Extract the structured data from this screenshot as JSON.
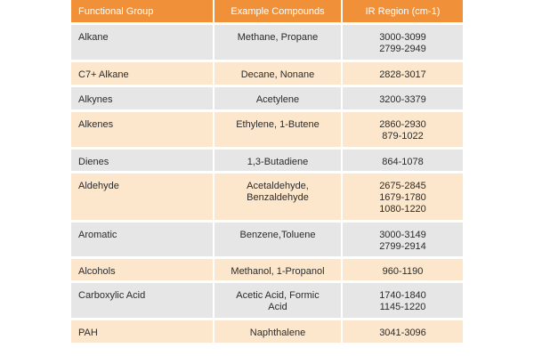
{
  "table": {
    "headers": [
      "Functional Group",
      "Example Compounds",
      "IR Region (cm-1)"
    ],
    "rows": [
      {
        "group": "Alkane",
        "compounds": [
          "Methane, Propane"
        ],
        "regions": [
          "3000-3099",
          "2799-2949"
        ]
      },
      {
        "group": "C7+ Alkane",
        "compounds": [
          "Decane, Nonane"
        ],
        "regions": [
          "2828-3017"
        ]
      },
      {
        "group": "Alkynes",
        "compounds": [
          "Acetylene"
        ],
        "regions": [
          "3200-3379"
        ]
      },
      {
        "group": "Alkenes",
        "compounds": [
          "Ethylene, 1-Butene"
        ],
        "regions": [
          "2860-2930",
          "879-1022"
        ]
      },
      {
        "group": "Dienes",
        "compounds": [
          "1,3-Butadiene"
        ],
        "regions": [
          "864-1078"
        ]
      },
      {
        "group": "Aldehyde",
        "compounds": [
          "Acetaldehyde,",
          "Benzaldehyde"
        ],
        "regions": [
          "2675-2845",
          "1679-1780",
          "1080-1220"
        ]
      },
      {
        "group": "Aromatic",
        "compounds": [
          "Benzene,Toluene"
        ],
        "regions": [
          "3000-3149",
          "2799-2914"
        ]
      },
      {
        "group": "Alcohols",
        "compounds": [
          "Methanol, 1-Propanol"
        ],
        "regions": [
          "960-1190"
        ]
      },
      {
        "group": "Carboxylic Acid",
        "compounds": [
          "Acetic Acid, Formic",
          "Acid"
        ],
        "regions": [
          "1740-1840",
          "1145-1220"
        ]
      },
      {
        "group": "PAH",
        "compounds": [
          "Naphthalene"
        ],
        "regions": [
          "3041-3096"
        ]
      }
    ]
  },
  "colors": {
    "header": "#f0913a",
    "row_gray": "#e6e6e6",
    "row_peach": "#fde7cc",
    "text": "#2b2b2b"
  }
}
